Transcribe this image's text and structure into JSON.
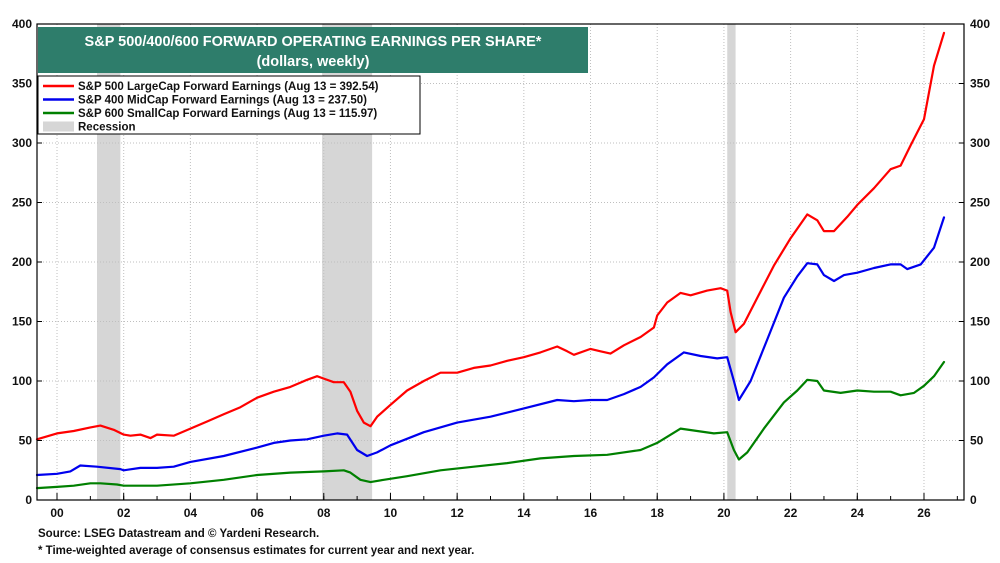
{
  "chart_data": {
    "type": "line",
    "title": "S&P 500/400/600 FORWARD OPERATING EARNINGS PER SHARE*",
    "subtitle": "(dollars, weekly)",
    "xlim": [
      1999.4,
      2027.2
    ],
    "ylim": [
      0,
      400
    ],
    "y_ticks": [
      0,
      50,
      100,
      150,
      200,
      250,
      300,
      350,
      400
    ],
    "x_ticks": [
      {
        "value": 2000,
        "label": "00"
      },
      {
        "value": 2002,
        "label": "02"
      },
      {
        "value": 2004,
        "label": "04"
      },
      {
        "value": 2006,
        "label": "06"
      },
      {
        "value": 2008,
        "label": "08"
      },
      {
        "value": 2010,
        "label": "10"
      },
      {
        "value": 2012,
        "label": "12"
      },
      {
        "value": 2014,
        "label": "14"
      },
      {
        "value": 2016,
        "label": "16"
      },
      {
        "value": 2018,
        "label": "18"
      },
      {
        "value": 2020,
        "label": "20"
      },
      {
        "value": 2022,
        "label": "22"
      },
      {
        "value": 2024,
        "label": "24"
      },
      {
        "value": 2026,
        "label": "26"
      }
    ],
    "recessions": [
      [
        2001.2,
        2001.9
      ],
      [
        2007.95,
        2009.45
      ],
      [
        2020.1,
        2020.35
      ]
    ],
    "grid": true,
    "legend": {
      "position": "top-left",
      "recession_label": "Recession"
    },
    "series": [
      {
        "name": "S&P 500 LargeCap Forward Earnings (Aug 13 = 392.54)",
        "color": "#ff0000",
        "points": [
          [
            1999.4,
            51
          ],
          [
            2000.0,
            56
          ],
          [
            2000.5,
            58
          ],
          [
            2001.0,
            61
          ],
          [
            2001.3,
            62.5
          ],
          [
            2001.7,
            59
          ],
          [
            2002.0,
            55
          ],
          [
            2002.2,
            54
          ],
          [
            2002.5,
            55
          ],
          [
            2002.8,
            52
          ],
          [
            2003.0,
            55
          ],
          [
            2003.5,
            54
          ],
          [
            2004.0,
            60
          ],
          [
            2004.5,
            66
          ],
          [
            2005.0,
            72
          ],
          [
            2005.5,
            78
          ],
          [
            2006.0,
            86
          ],
          [
            2006.5,
            91
          ],
          [
            2007.0,
            95
          ],
          [
            2007.5,
            101
          ],
          [
            2007.8,
            104
          ],
          [
            2008.0,
            102
          ],
          [
            2008.3,
            99
          ],
          [
            2008.6,
            99
          ],
          [
            2008.8,
            91
          ],
          [
            2009.0,
            75
          ],
          [
            2009.2,
            65
          ],
          [
            2009.4,
            62
          ],
          [
            2009.6,
            70
          ],
          [
            2010.0,
            80
          ],
          [
            2010.5,
            92
          ],
          [
            2011.0,
            100
          ],
          [
            2011.5,
            107
          ],
          [
            2012.0,
            107
          ],
          [
            2012.5,
            111
          ],
          [
            2013.0,
            113
          ],
          [
            2013.5,
            117
          ],
          [
            2014.0,
            120
          ],
          [
            2014.5,
            124
          ],
          [
            2015.0,
            129
          ],
          [
            2015.3,
            125
          ],
          [
            2015.5,
            122
          ],
          [
            2016.0,
            127
          ],
          [
            2016.3,
            125
          ],
          [
            2016.6,
            123
          ],
          [
            2017.0,
            130
          ],
          [
            2017.5,
            137
          ],
          [
            2017.9,
            145
          ],
          [
            2018.0,
            155
          ],
          [
            2018.3,
            166
          ],
          [
            2018.7,
            174
          ],
          [
            2019.0,
            172
          ],
          [
            2019.5,
            176
          ],
          [
            2019.9,
            178
          ],
          [
            2020.1,
            176
          ],
          [
            2020.2,
            158
          ],
          [
            2020.35,
            141
          ],
          [
            2020.6,
            148
          ],
          [
            2021.0,
            170
          ],
          [
            2021.5,
            197
          ],
          [
            2022.0,
            220
          ],
          [
            2022.5,
            240
          ],
          [
            2022.8,
            235
          ],
          [
            2023.0,
            226
          ],
          [
            2023.3,
            226
          ],
          [
            2023.7,
            238
          ],
          [
            2024.0,
            248
          ],
          [
            2024.5,
            262
          ],
          [
            2025.0,
            278
          ],
          [
            2025.3,
            281
          ],
          [
            2025.6,
            298
          ],
          [
            2026.0,
            320
          ],
          [
            2026.3,
            365
          ],
          [
            2026.6,
            392.54
          ]
        ]
      },
      {
        "name": "S&P 400 MidCap Forward Earnings (Aug 13 = 237.50)",
        "color": "#0000ee",
        "points": [
          [
            1999.4,
            21
          ],
          [
            2000.0,
            22
          ],
          [
            2000.4,
            24
          ],
          [
            2000.7,
            29
          ],
          [
            2001.2,
            28
          ],
          [
            2001.9,
            26
          ],
          [
            2002.0,
            25
          ],
          [
            2002.5,
            27
          ],
          [
            2003.0,
            27
          ],
          [
            2003.5,
            28
          ],
          [
            2004.0,
            32
          ],
          [
            2005.0,
            37
          ],
          [
            2006.0,
            44
          ],
          [
            2006.5,
            48
          ],
          [
            2007.0,
            50
          ],
          [
            2007.5,
            51
          ],
          [
            2008.0,
            54
          ],
          [
            2008.4,
            56
          ],
          [
            2008.7,
            55
          ],
          [
            2009.0,
            42
          ],
          [
            2009.3,
            37
          ],
          [
            2009.6,
            40
          ],
          [
            2010.0,
            46
          ],
          [
            2011.0,
            57
          ],
          [
            2012.0,
            65
          ],
          [
            2013.0,
            70
          ],
          [
            2014.0,
            77
          ],
          [
            2015.0,
            84
          ],
          [
            2015.5,
            83
          ],
          [
            2016.0,
            84
          ],
          [
            2016.5,
            84
          ],
          [
            2017.0,
            89
          ],
          [
            2017.5,
            95
          ],
          [
            2017.9,
            103
          ],
          [
            2018.3,
            114
          ],
          [
            2018.8,
            124
          ],
          [
            2019.3,
            121
          ],
          [
            2019.8,
            119
          ],
          [
            2020.1,
            120
          ],
          [
            2020.3,
            100
          ],
          [
            2020.45,
            84
          ],
          [
            2020.8,
            100
          ],
          [
            2021.3,
            135
          ],
          [
            2021.8,
            170
          ],
          [
            2022.2,
            188
          ],
          [
            2022.5,
            199
          ],
          [
            2022.8,
            198
          ],
          [
            2023.0,
            189
          ],
          [
            2023.3,
            184
          ],
          [
            2023.6,
            189
          ],
          [
            2024.0,
            191
          ],
          [
            2024.5,
            195
          ],
          [
            2025.0,
            198
          ],
          [
            2025.3,
            198
          ],
          [
            2025.5,
            194
          ],
          [
            2025.9,
            198
          ],
          [
            2026.3,
            212
          ],
          [
            2026.6,
            237.5
          ]
        ]
      },
      {
        "name": "S&P 600 SmallCap Forward Earnings (Aug 13 = 115.97)",
        "color": "#008000",
        "points": [
          [
            1999.4,
            10
          ],
          [
            2000.0,
            11
          ],
          [
            2000.5,
            12
          ],
          [
            2001.0,
            14
          ],
          [
            2001.3,
            14
          ],
          [
            2001.8,
            13
          ],
          [
            2002.0,
            12
          ],
          [
            2002.5,
            12
          ],
          [
            2003.0,
            12
          ],
          [
            2004.0,
            14
          ],
          [
            2005.0,
            17
          ],
          [
            2006.0,
            21
          ],
          [
            2007.0,
            23
          ],
          [
            2008.0,
            24
          ],
          [
            2008.6,
            25
          ],
          [
            2008.8,
            23
          ],
          [
            2009.1,
            17
          ],
          [
            2009.4,
            15
          ],
          [
            2009.8,
            17
          ],
          [
            2010.5,
            20
          ],
          [
            2011.5,
            25
          ],
          [
            2012.5,
            28
          ],
          [
            2013.5,
            31
          ],
          [
            2014.5,
            35
          ],
          [
            2015.5,
            37
          ],
          [
            2016.5,
            38
          ],
          [
            2017.5,
            42
          ],
          [
            2018.0,
            48
          ],
          [
            2018.7,
            60
          ],
          [
            2019.2,
            58
          ],
          [
            2019.7,
            56
          ],
          [
            2020.1,
            57
          ],
          [
            2020.3,
            42
          ],
          [
            2020.45,
            34
          ],
          [
            2020.7,
            40
          ],
          [
            2021.2,
            60
          ],
          [
            2021.8,
            82
          ],
          [
            2022.2,
            92
          ],
          [
            2022.5,
            101
          ],
          [
            2022.8,
            100
          ],
          [
            2023.0,
            92
          ],
          [
            2023.5,
            90
          ],
          [
            2024.0,
            92
          ],
          [
            2024.5,
            91
          ],
          [
            2025.0,
            91
          ],
          [
            2025.3,
            88
          ],
          [
            2025.7,
            90
          ],
          [
            2026.0,
            96
          ],
          [
            2026.3,
            104
          ],
          [
            2026.6,
            115.97
          ]
        ]
      }
    ]
  },
  "footnotes": {
    "source": "Source: LSEG Datastream and © Yardeni Research.",
    "note": "* Time-weighted average of consensus estimates for current year and next year."
  }
}
